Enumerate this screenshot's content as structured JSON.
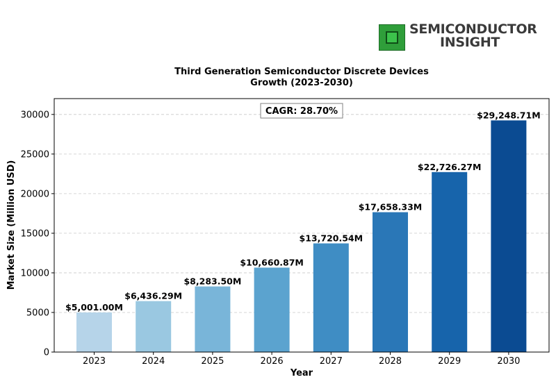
{
  "logo": {
    "line1": "SEMICONDUCTOR",
    "line2": "INSIGHT"
  },
  "chart_data": {
    "type": "bar",
    "title_line1": "Third Generation Semiconductor Discrete Devices",
    "title_line2": "Growth (2023-2030)",
    "xlabel": "Year",
    "ylabel": "Market Size (Million USD)",
    "ylim": [
      0,
      32000
    ],
    "yticks": [
      0,
      5000,
      10000,
      15000,
      20000,
      25000,
      30000
    ],
    "grid": true,
    "annotation": "CAGR: 28.70%",
    "categories": [
      "2023",
      "2024",
      "2025",
      "2026",
      "2027",
      "2028",
      "2029",
      "2030"
    ],
    "values": [
      5001.0,
      6436.29,
      8283.5,
      10660.87,
      13720.54,
      17658.33,
      22726.27,
      29248.71
    ],
    "labels": [
      "$5,001.00M",
      "$6,436.29M",
      "$8,283.50M",
      "$10,660.87M",
      "$13,720.54M",
      "$17,658.33M",
      "$22,726.27M",
      "$29,248.71M"
    ],
    "colors": [
      "#b6d4e9",
      "#9ac8e1",
      "#79b5d9",
      "#5ba3cf",
      "#3f8dc4",
      "#2a77b7",
      "#1764ab",
      "#0b4b92"
    ]
  }
}
